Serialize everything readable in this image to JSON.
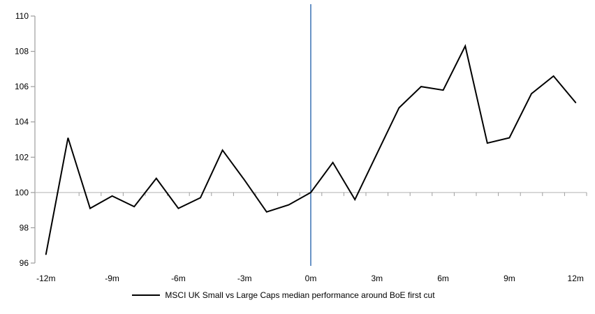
{
  "chart_data": {
    "type": "line",
    "title": "",
    "categories": [
      "-12m",
      "-11m",
      "-10m",
      "-9m",
      "-8m",
      "-7m",
      "-6m",
      "-5m",
      "-4m",
      "-3m",
      "-2m",
      "-1m",
      "0m",
      "1m",
      "2m",
      "3m",
      "4m",
      "5m",
      "6m",
      "7m",
      "8m",
      "9m",
      "10m",
      "11m",
      "12m"
    ],
    "series": [
      {
        "name": "MSCI UK Small vs Large Caps median performance around BoE first cut",
        "color": "#000000",
        "values": [
          96.5,
          103.1,
          99.1,
          99.8,
          99.2,
          100.8,
          99.1,
          99.7,
          102.4,
          100.7,
          98.9,
          99.3,
          100.0,
          101.7,
          99.6,
          102.2,
          104.8,
          106.0,
          105.8,
          108.3,
          102.8,
          103.1,
          105.6,
          106.6,
          105.1
        ]
      }
    ],
    "x_tick_labels": [
      "-12m",
      "-9m",
      "-6m",
      "-3m",
      "0m",
      "3m",
      "6m",
      "9m",
      "12m"
    ],
    "x_label_every": 3,
    "y_ticks": [
      110,
      108,
      106,
      104,
      102,
      100,
      98,
      96
    ],
    "ylim": [
      96,
      110
    ],
    "x_axis_cross_at": 100,
    "event_line": {
      "category": "0m",
      "color": "#4f81bd"
    },
    "legend": "MSCI UK Small vs Large Caps median performance around BoE first cut",
    "legend_position": "bottom",
    "grid": "off",
    "colors": {
      "series": "#000000",
      "event_line": "#4f81bd",
      "y_axis": "#9d9d9d",
      "x_axis": "#c0c0c0",
      "tick": "#9d9d9d",
      "label": "#000000"
    }
  }
}
